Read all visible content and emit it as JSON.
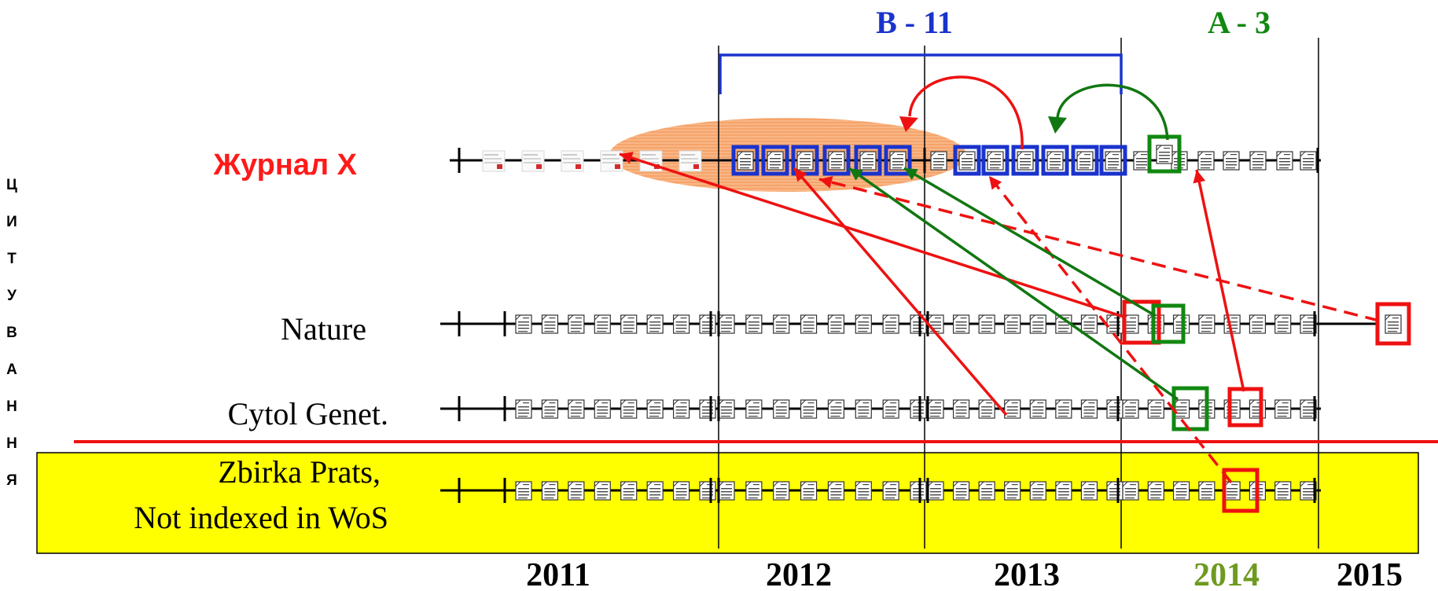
{
  "diagram": {
    "vertical_label": [
      "Ц",
      "И",
      "Т",
      "У",
      "В",
      "А",
      "Н",
      "Н",
      "Я"
    ],
    "window_labels": {
      "b": "B - 11",
      "a": "A - 3"
    },
    "rows": [
      {
        "key": "journal_x",
        "label": "Журнал X",
        "color": "#ff1a1a"
      },
      {
        "key": "nature",
        "label": "Nature",
        "color": "#000000"
      },
      {
        "key": "cytol",
        "label": "Cytol Genet.",
        "color": "#000000"
      },
      {
        "key": "zbirka",
        "label_line1": "Zbirka Prats,",
        "label_line2": "Not indexed in WoS",
        "color": "#000000"
      }
    ],
    "years": [
      {
        "label": "2011",
        "color": "#000000"
      },
      {
        "label": "2012",
        "color": "#000000"
      },
      {
        "label": "2013",
        "color": "#000000"
      },
      {
        "label": "2014",
        "color": "#6f9a21"
      },
      {
        "label": "2015",
        "color": "#000000"
      }
    ],
    "colors": {
      "b_window": "#1a33cc",
      "a_window": "#118811",
      "citation_red": "#ee1111",
      "citation_green": "#117711",
      "highlight_ellipse": "#f5a56c",
      "non_indexed_box": "#ffff00",
      "cutoff_line": "#ee1111"
    },
    "icons": {
      "document": "document-icon",
      "faded_document": "journal-preview-icon"
    }
  }
}
